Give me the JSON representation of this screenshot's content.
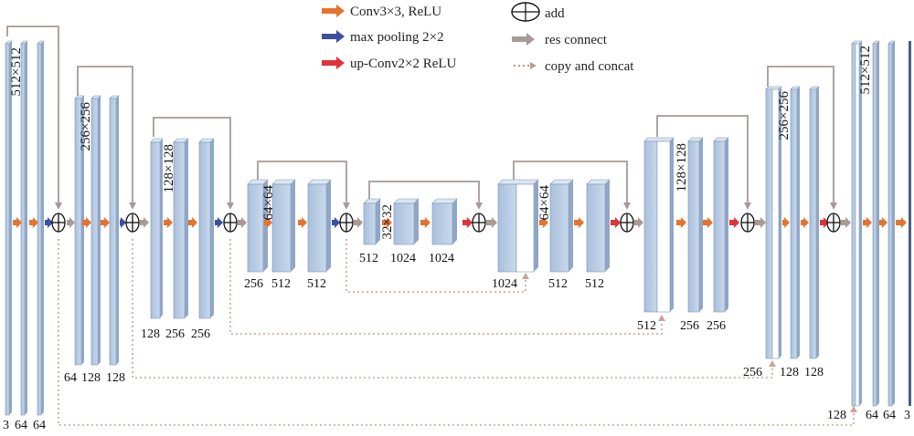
{
  "colors": {
    "conv": "#e2742f",
    "pool": "#3d4f9e",
    "upconv": "#e0343a",
    "res": "#a89a95",
    "concat": "#b89a92",
    "block_front": "#bed0e4",
    "block_side": "#8fa6c4",
    "block_top": "#dbe6f2"
  },
  "legend": {
    "conv": "Conv3×3, ReLU",
    "pool": "max pooling 2×2",
    "upconv": "up-Conv2×2 ReLU",
    "add": "add",
    "res": "res connect",
    "concat": "copy and concat"
  },
  "sizes": {
    "s512": "512×512",
    "s256": "256×256",
    "s128": "128×128",
    "s64": "64×64",
    "s32": "32×32",
    "d512r": "512×512",
    "d256r": "256×256",
    "d128r": "128×128",
    "d64r": "64×64"
  },
  "channels": {
    "e1": [
      "3",
      "64",
      "64"
    ],
    "e2": [
      "64",
      "128",
      "128"
    ],
    "e3": [
      "128",
      "256",
      "256"
    ],
    "e4": [
      "256",
      "512",
      "512"
    ],
    "bot": [
      "512",
      "1024",
      "1024"
    ],
    "d4": [
      "1024",
      "512",
      "512"
    ],
    "d3": [
      "512",
      "256",
      "256"
    ],
    "d2": [
      "256",
      "128",
      "128"
    ],
    "d1": [
      "128",
      "64",
      "64",
      "3"
    ]
  }
}
